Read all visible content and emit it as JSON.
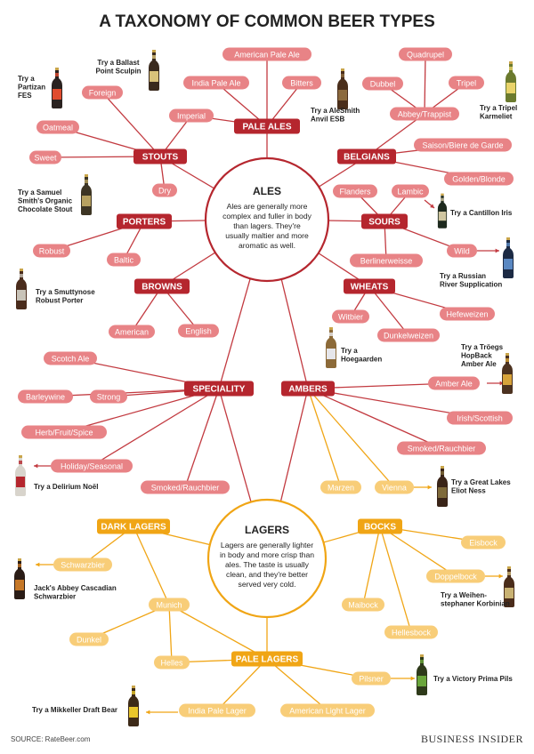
{
  "title": "A TAXONOMY OF COMMON BEER TYPES",
  "source": "SOURCE: RateBeer.com",
  "publisher": "BUSINESS INSIDER",
  "colors": {
    "ale_dark": "#b5262e",
    "ale_light": "#e88386",
    "lager_dark": "#f0a515",
    "lager_light": "#f8cd78",
    "line": "#c23a40",
    "line_lager": "#f0a515"
  },
  "hubs": {
    "ales": {
      "title": "ALES",
      "lines": [
        "Ales are generally more",
        "complex and fuller in body",
        "than lagers. They're",
        "usually maltier and more",
        "aromatic as well."
      ]
    },
    "lagers": {
      "title": "LAGERS",
      "lines": [
        "Lagers are generally lighter",
        "in body and more crisp than",
        "ales. The taste is usually",
        "clean, and they're better",
        "served very cold."
      ]
    }
  },
  "categories": {
    "pale_ales": "PALE ALES",
    "stouts": "STOUTS",
    "belgians": "BELGIANS",
    "porters": "PORTERS",
    "sours": "SOURS",
    "browns": "BROWNS",
    "wheats": "WHEATS",
    "speciality": "SPECIALITY",
    "ambers": "AMBERS",
    "dark_lagers": "DARK LAGERS",
    "bocks": "BOCKS",
    "pale_lagers": "PALE LAGERS"
  },
  "styles": {
    "american_pale_ale": "American Pale Ale",
    "india_pale_ale": "India Pale Ale",
    "bitters": "Bitters",
    "imperial": "Imperial",
    "foreign": "Foreign",
    "oatmeal": "Oatmeal",
    "sweet": "Sweet",
    "dry": "Dry",
    "quadrupel": "Quadrupel",
    "dubbel": "Dubbel",
    "tripel": "Tripel",
    "abbey_trappist": "Abbey/Trappist",
    "saison": "Saison/Biere de Garde",
    "golden_blonde": "Golden/Blonde",
    "flanders": "Flanders",
    "lambic": "Lambic",
    "wild": "Wild",
    "berlinerweisse": "Berlinerweisse",
    "robust": "Robust",
    "baltic": "Baltic",
    "american_brown": "American",
    "english_brown": "English",
    "witbier": "Witbier",
    "hefeweizen": "Hefeweizen",
    "dunkelweizen": "Dunkelweizen",
    "scotch_ale": "Scotch Ale",
    "barleywine": "Barleywine",
    "strong": "Strong",
    "herb_fruit_spice": "Herb/Fruit/Spice",
    "holiday_seasonal": "Holiday/Seasonal",
    "smoked_spec": "Smoked/Rauchbier",
    "amber_ale": "Amber Ale",
    "irish_scottish": "Irish/Scottish",
    "smoked_amber": "Smoked/Rauchbier",
    "marzen": "Marzen",
    "vienna": "Vienna",
    "schwarzbier": "Schwarzbier",
    "munich": "Munich",
    "dunkel": "Dunkel",
    "helles": "Helles",
    "eisbock": "Eisbock",
    "doppelbock": "Doppelbock",
    "maibock": "Maibock",
    "hellesbock": "Hellesbock",
    "pilsner": "Pilsner",
    "india_pale_lager": "India Pale Lager",
    "american_light_lager": "American Light Lager"
  },
  "tries": {
    "ballast": [
      "Try a Ballast",
      "Point Sculpin"
    ],
    "partizan": [
      "Try a",
      "Partizan",
      "FES"
    ],
    "anvil": [
      "Try a AleSmith",
      "Anvil ESB"
    ],
    "karmeliet": [
      "Try a Tripel",
      "Karmeliet"
    ],
    "samuel": [
      "Try a Samuel",
      "Smith's Organic",
      "Chocolate Stout"
    ],
    "cantillon": [
      "Try a Cantillon Iris"
    ],
    "russian": [
      "Try a Russian",
      "River Supplication"
    ],
    "smuttynose": [
      "Try a Smuttynose",
      "Robust Porter"
    ],
    "hoegaarden": [
      "Try a",
      "Hoegaarden"
    ],
    "troegs": [
      "Try a Tröegs",
      "HopBack",
      "Amber Ale"
    ],
    "delirium": [
      "Try a Delirium Noël"
    ],
    "eliot": [
      "Try a Great Lakes",
      "Eliot Ness"
    ],
    "jacks": [
      "Jack's Abbey Cascadian",
      "Schwarzbier"
    ],
    "weihen": [
      "Try a Weihen-",
      "stephaner Korbinian"
    ],
    "victory": [
      "Try a Victory Prima Pils"
    ],
    "mikkeller": [
      "Try a Mikkeller Draft Bear"
    ]
  }
}
